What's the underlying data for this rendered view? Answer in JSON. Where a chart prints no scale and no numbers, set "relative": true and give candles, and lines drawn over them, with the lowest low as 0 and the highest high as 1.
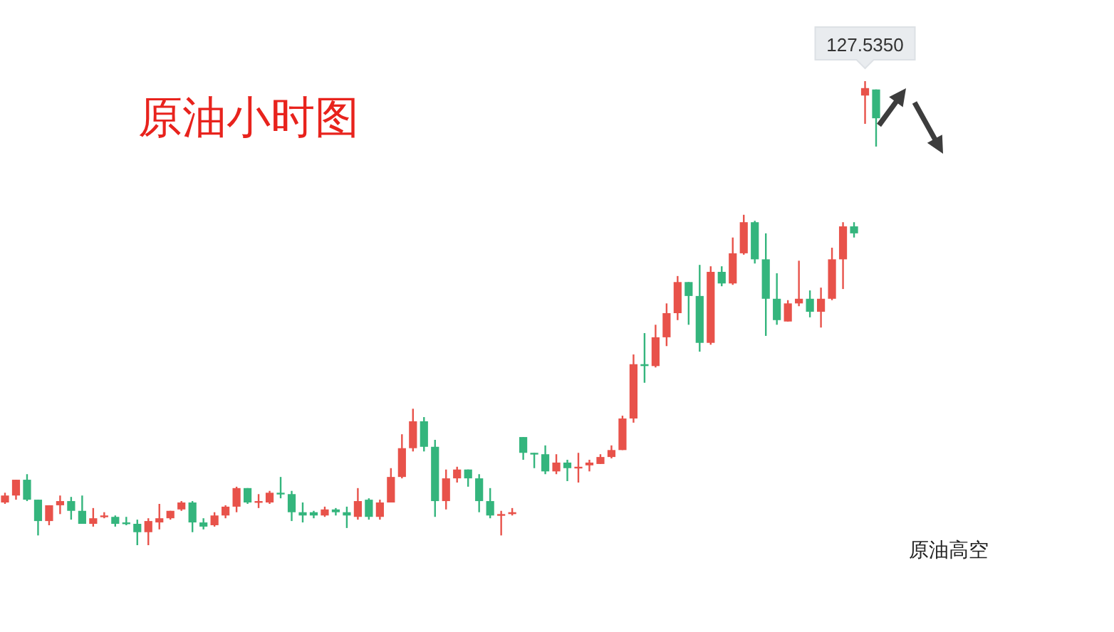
{
  "chart_data": {
    "type": "candlestick",
    "title": "原油小时图",
    "relative": true,
    "categories": [
      null,
      null,
      null,
      null,
      null,
      null,
      null,
      null,
      null,
      null,
      null,
      null,
      null,
      null,
      null,
      null,
      null,
      null,
      null,
      null,
      null,
      null,
      null,
      null,
      null,
      null,
      null,
      null,
      null,
      null,
      null,
      null,
      null,
      null,
      null,
      null,
      null,
      null,
      null,
      null,
      null,
      null,
      null,
      null,
      null,
      null,
      null,
      null,
      null,
      null,
      null,
      null,
      null,
      null,
      null,
      null,
      null,
      null,
      null,
      null,
      null,
      null,
      null,
      null,
      null,
      null,
      null,
      null,
      null,
      null,
      null,
      null,
      null,
      null,
      null,
      null,
      null,
      null,
      null,
      null
    ],
    "ohlc": [
      [
        0.092,
        0.113,
        0.089,
        0.107
      ],
      [
        0.107,
        0.141,
        0.098,
        0.141
      ],
      [
        0.141,
        0.153,
        0.095,
        0.098
      ],
      [
        0.098,
        0.098,
        0.021,
        0.052
      ],
      [
        0.052,
        0.086,
        0.043,
        0.086
      ],
      [
        0.086,
        0.107,
        0.067,
        0.095
      ],
      [
        0.095,
        0.104,
        0.055,
        0.074
      ],
      [
        0.074,
        0.107,
        0.046,
        0.046
      ],
      [
        0.046,
        0.08,
        0.04,
        0.058
      ],
      [
        0.061,
        0.071,
        0.058,
        0.064
      ],
      [
        0.061,
        0.064,
        0.04,
        0.046
      ],
      [
        0.049,
        0.061,
        0.043,
        0.046
      ],
      [
        0.046,
        0.055,
        0.0,
        0.028
      ],
      [
        0.028,
        0.058,
        0.0,
        0.052
      ],
      [
        0.049,
        0.089,
        0.034,
        0.058
      ],
      [
        0.058,
        0.074,
        0.055,
        0.074
      ],
      [
        0.077,
        0.095,
        0.074,
        0.092
      ],
      [
        0.092,
        0.095,
        0.028,
        0.049
      ],
      [
        0.049,
        0.058,
        0.034,
        0.04
      ],
      [
        0.043,
        0.071,
        0.04,
        0.064
      ],
      [
        0.064,
        0.086,
        0.058,
        0.083
      ],
      [
        0.083,
        0.126,
        0.071,
        0.123
      ],
      [
        0.123,
        0.123,
        0.089,
        0.092
      ],
      [
        0.092,
        0.11,
        0.08,
        0.095
      ],
      [
        0.092,
        0.117,
        0.089,
        0.113
      ],
      [
        0.113,
        0.147,
        0.101,
        0.11
      ],
      [
        0.11,
        0.117,
        0.052,
        0.071
      ],
      [
        0.071,
        0.092,
        0.049,
        0.064
      ],
      [
        0.071,
        0.074,
        0.058,
        0.064
      ],
      [
        0.064,
        0.083,
        0.061,
        0.077
      ],
      [
        0.077,
        0.08,
        0.064,
        0.071
      ],
      [
        0.071,
        0.083,
        0.037,
        0.064
      ],
      [
        0.061,
        0.123,
        0.055,
        0.095
      ],
      [
        0.098,
        0.101,
        0.055,
        0.061
      ],
      [
        0.061,
        0.098,
        0.055,
        0.092
      ],
      [
        0.092,
        0.166,
        0.092,
        0.147
      ],
      [
        0.147,
        0.239,
        0.144,
        0.209
      ],
      [
        0.209,
        0.294,
        0.202,
        0.267
      ],
      [
        0.267,
        0.276,
        0.202,
        0.212
      ],
      [
        0.212,
        0.227,
        0.061,
        0.095
      ],
      [
        0.095,
        0.163,
        0.077,
        0.144
      ],
      [
        0.144,
        0.169,
        0.135,
        0.163
      ],
      [
        0.163,
        0.163,
        0.126,
        0.144
      ],
      [
        0.144,
        0.153,
        0.071,
        0.095
      ],
      [
        0.095,
        0.123,
        0.058,
        0.064
      ],
      [
        0.064,
        0.074,
        0.021,
        0.067
      ],
      [
        0.067,
        0.08,
        0.064,
        0.071
      ],
      [
        0.233,
        0.233,
        0.184,
        0.199
      ],
      [
        0.199,
        0.199,
        0.166,
        0.196
      ],
      [
        0.196,
        0.215,
        0.153,
        0.159
      ],
      [
        0.159,
        0.196,
        0.153,
        0.178
      ],
      [
        0.178,
        0.184,
        0.138,
        0.166
      ],
      [
        0.166,
        0.199,
        0.135,
        0.169
      ],
      [
        0.172,
        0.184,
        0.159,
        0.178
      ],
      [
        0.175,
        0.196,
        0.175,
        0.19
      ],
      [
        0.19,
        0.215,
        0.187,
        0.205
      ],
      [
        0.205,
        0.279,
        0.205,
        0.273
      ],
      [
        0.273,
        0.411,
        0.264,
        0.39
      ],
      [
        0.39,
        0.457,
        0.35,
        0.386
      ],
      [
        0.386,
        0.475,
        0.383,
        0.448
      ],
      [
        0.448,
        0.521,
        0.429,
        0.5
      ],
      [
        0.5,
        0.58,
        0.485,
        0.567
      ],
      [
        0.567,
        0.567,
        0.475,
        0.537
      ],
      [
        0.537,
        0.604,
        0.417,
        0.436
      ],
      [
        0.436,
        0.601,
        0.432,
        0.589
      ],
      [
        0.589,
        0.601,
        0.558,
        0.564
      ],
      [
        0.564,
        0.663,
        0.561,
        0.629
      ],
      [
        0.629,
        0.712,
        0.626,
        0.696
      ],
      [
        0.696,
        0.699,
        0.607,
        0.616
      ],
      [
        0.616,
        0.672,
        0.451,
        0.531
      ],
      [
        0.531,
        0.586,
        0.475,
        0.485
      ],
      [
        0.482,
        0.528,
        0.482,
        0.521
      ],
      [
        0.521,
        0.613,
        0.515,
        0.531
      ],
      [
        0.531,
        0.549,
        0.491,
        0.503
      ],
      [
        0.503,
        0.555,
        0.469,
        0.531
      ],
      [
        0.531,
        0.641,
        0.528,
        0.616
      ],
      [
        0.616,
        0.696,
        0.552,
        0.687
      ],
      [
        0.687,
        0.696,
        0.663,
        0.672
      ],
      [
        0.969,
        1.0,
        0.908,
        0.985
      ],
      [
        0.982,
        0.982,
        0.859,
        0.92
      ]
    ],
    "annotations": [
      {
        "text": "127.5350",
        "y": 1
      },
      "原油高空"
    ]
  }
}
